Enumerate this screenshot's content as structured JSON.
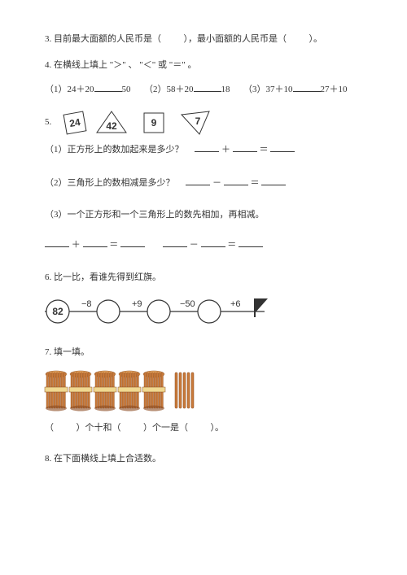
{
  "q3": {
    "text_a": "3. 目前最大面额的人民币是（",
    "text_b": "），最小面额的人民币是（",
    "text_c": "）。"
  },
  "q4": {
    "prompt": "4. 在横线上填上 \"＞\" 、 \"＜\" 或 \"＝\" 。",
    "p1_a": "（1）24＋20",
    "p1_b": "50",
    "p2_a": "（2）58＋20",
    "p2_b": "18",
    "p3_a": "（3）37＋10",
    "p3_b": "27＋10"
  },
  "q5": {
    "label": "5.",
    "shapes": {
      "sq1": "24",
      "tri1": "42",
      "sq2": "9",
      "tri2": "7"
    },
    "sub1": "（1）正方形上的数加起来是多少？",
    "sub2": "（2）三角形上的数相减是多少？",
    "sub3": "（3）一个正方形和一个三角形上的数先相加，再相减。",
    "plus": "＋",
    "minus": "－",
    "eq": "＝"
  },
  "q6": {
    "prompt": "6. 比一比，看谁先得到红旗。",
    "start": "82",
    "op1": "−8",
    "op2": "+9",
    "op3": "−50",
    "op4": "+6"
  },
  "q7": {
    "prompt": "7. 填一填。",
    "bundle_count": 5,
    "stick_count": 5,
    "text_a": "（",
    "text_b": "）个十和（",
    "text_c": "）个一是（",
    "text_d": "）。"
  },
  "q8": {
    "prompt": "8. 在下面横线上填上合适数。"
  },
  "colors": {
    "bundle_fill": "#c97a3a",
    "bundle_dark": "#8a4a1f",
    "bundle_light": "#e8a862",
    "band": "#f0d890"
  }
}
